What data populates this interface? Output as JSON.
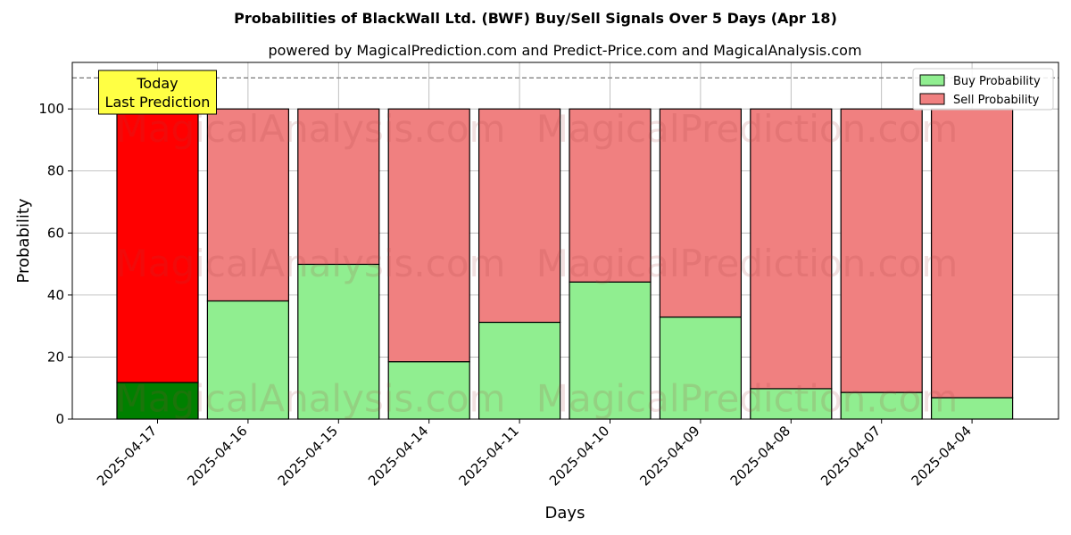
{
  "chart_data": {
    "type": "bar",
    "stacked": true,
    "title": "Probabilities of BlackWall Ltd. (BWF) Buy/Sell Signals Over 5 Days (Apr 18)",
    "subtitle": "powered by MagicalPrediction.com and Predict-Price.com and MagicalAnalysis.com",
    "xlabel": "Days",
    "ylabel": "Probability",
    "ylim": [
      0,
      115
    ],
    "yticks": [
      0,
      20,
      40,
      60,
      80,
      100
    ],
    "grid": true,
    "legend_position": "top-right",
    "reference_line": 110,
    "categories": [
      "2025-04-17",
      "2025-04-16",
      "2025-04-15",
      "2025-04-14",
      "2025-04-11",
      "2025-04-10",
      "2025-04-09",
      "2025-04-08",
      "2025-04-07",
      "2025-04-04"
    ],
    "series": [
      {
        "name": "Buy Probability",
        "values": [
          11.8,
          38.1,
          49.9,
          18.5,
          31.2,
          44.2,
          32.9,
          9.8,
          8.6,
          6.9
        ],
        "color": "#90ee90",
        "highlight_color": "#008000"
      },
      {
        "name": "Sell Probability",
        "values": [
          88.2,
          61.9,
          50.1,
          81.5,
          68.8,
          55.8,
          67.1,
          90.2,
          91.4,
          93.1
        ],
        "color": "#f08080",
        "highlight_color": "#ff0000"
      }
    ],
    "annotation": {
      "lines": [
        "Today",
        "Last Prediction"
      ],
      "category": "2025-04-17",
      "color": "#ffff44"
    },
    "watermarks": [
      "MagicalAnalysis.com",
      "MagicalPrediction.com"
    ]
  }
}
